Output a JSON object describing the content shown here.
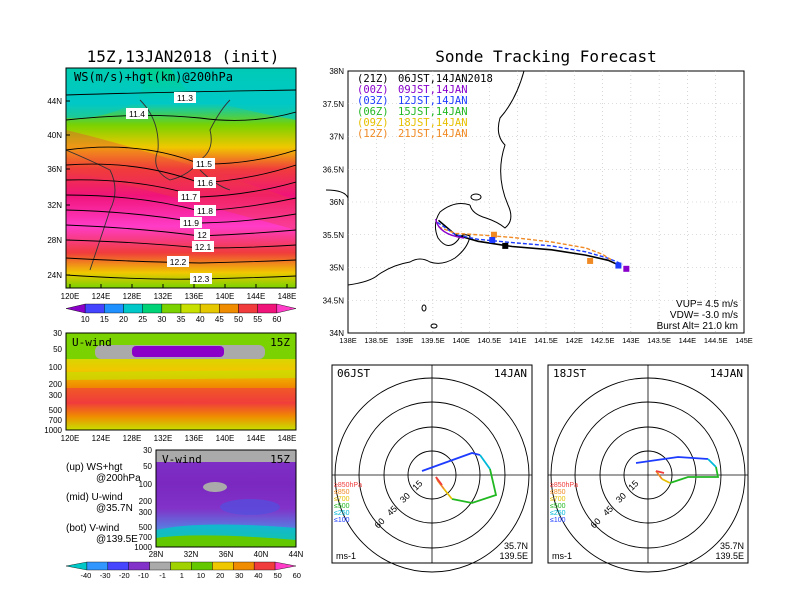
{
  "colors": {
    "accent_purple": "#8800cc",
    "track_blue": "#1e3cff",
    "track_orange": "#f08a24",
    "wind_scale": [
      "#8a00c8",
      "#4444ff",
      "#1e90ff",
      "#00c8c8",
      "#00d278",
      "#7ad200",
      "#c8e000",
      "#e6c800",
      "#f08c00",
      "#f03c3c",
      "#f0147a",
      "#ff3cc8"
    ],
    "vwind_scale": [
      "#00c8c8",
      "#3296ff",
      "#4646ff",
      "#8232c8",
      "#aaaaaa",
      "#a0d200",
      "#64c800",
      "#f0c800",
      "#f08c00",
      "#f03c3c",
      "#ff3cc8"
    ]
  },
  "left": {
    "main_title": "15Z,13JAN2018 (init)",
    "map_label": "WS(m/s)+hgt(km)@200hPa",
    "lat_ticks": [
      "44N",
      "40N",
      "36N",
      "32N",
      "28N",
      "24N"
    ],
    "lon_ticks": [
      "120E",
      "124E",
      "128E",
      "132E",
      "136E",
      "140E",
      "144E",
      "148E"
    ],
    "contours": [
      "11.3",
      "11.4",
      "11.5",
      "11.6",
      "11.7",
      "11.8",
      "11.9",
      "12",
      "12.1",
      "12.2",
      "12.3"
    ],
    "colorbar_labels": [
      "10",
      "15",
      "20",
      "25",
      "30",
      "35",
      "40",
      "45",
      "50",
      "55",
      "60"
    ]
  },
  "uwind": {
    "label": "U-wind",
    "time": "15Z",
    "p_ticks": [
      "30",
      "50",
      "100",
      "200",
      "300",
      "500",
      "700",
      "1000"
    ],
    "lon_ticks": [
      "120E",
      "124E",
      "128E",
      "132E",
      "136E",
      "140E",
      "144E",
      "148E"
    ]
  },
  "vwind": {
    "label": "V-wind",
    "time": "15Z",
    "p_ticks": [
      "30",
      "50",
      "100",
      "200",
      "300",
      "500",
      "700",
      "1000"
    ],
    "lat_ticks": [
      "28N",
      "32N",
      "36N",
      "40N",
      "44N"
    ],
    "colorbar_labels": [
      "-40",
      "-30",
      "-20",
      "-10",
      "-1",
      "1",
      "10",
      "20",
      "30",
      "40",
      "50",
      "60"
    ]
  },
  "legend_notes": [
    {
      "line1": "(up) WS+hgt",
      "line2": "@200hPa"
    },
    {
      "line1": "(mid) U-wind",
      "line2": "@35.7N"
    },
    {
      "line1": "(bot) V-wind",
      "line2": "@139.5E"
    }
  ],
  "track": {
    "title": "Sonde Tracking Forecast",
    "lat_ticks": [
      "38N",
      "37.5N",
      "37N",
      "36.5N",
      "36N",
      "35.5N",
      "35N",
      "34.5N",
      "34N"
    ],
    "lon_ticks": [
      "138E",
      "138.5E",
      "139E",
      "139.5E",
      "140E",
      "140.5E",
      "141E",
      "141.5E",
      "142E",
      "142.5E",
      "143E",
      "143.5E",
      "144E",
      "144.5E",
      "145E"
    ],
    "legend": [
      {
        "z": "(21Z)",
        "t": "06JST,14JAN2018",
        "color": "#000000"
      },
      {
        "z": "(00Z)",
        "t": "09JST,14JAN",
        "color": "#8800cc"
      },
      {
        "z": "(03Z)",
        "t": "12JST,14JAN",
        "color": "#1e3cff"
      },
      {
        "z": "(06Z)",
        "t": "15JST,14JAN",
        "color": "#22b822"
      },
      {
        "z": "(09Z)",
        "t": "18JST,14JAN",
        "color": "#e6c000"
      },
      {
        "z": "(12Z)",
        "t": "21JST,14JAN",
        "color": "#f08a24"
      }
    ],
    "params": [
      "VUP= 4.5 m/s",
      "VDW= -3.0 m/s",
      "Burst Alt= 21.0 km"
    ]
  },
  "hodo_left": {
    "time": "06JST",
    "date": "14JAN",
    "rings": [
      "15",
      "30",
      "45",
      "60"
    ],
    "levels": [
      {
        "t": "≥850hPa",
        "c": "#f03c3c"
      },
      {
        "t": "≤850",
        "c": "#f08a24"
      },
      {
        "t": "≤700",
        "c": "#e6c000"
      },
      {
        "t": "≤500",
        "c": "#22b822"
      },
      {
        "t": "≤250",
        "c": "#00b8d8"
      },
      {
        "t": "≤100",
        "c": "#1e3cff"
      }
    ],
    "units": "ms-1",
    "lat": "35.7N",
    "lon": "139.5E"
  },
  "hodo_right": {
    "time": "18JST",
    "date": "14JAN",
    "rings": [
      "15",
      "30",
      "45",
      "60"
    ],
    "levels": [
      {
        "t": "≥850hPa",
        "c": "#f03c3c"
      },
      {
        "t": "≤850",
        "c": "#f08a24"
      },
      {
        "t": "≤700",
        "c": "#e6c000"
      },
      {
        "t": "≤500",
        "c": "#22b822"
      },
      {
        "t": "≤250",
        "c": "#00b8d8"
      },
      {
        "t": "≤100",
        "c": "#1e3cff"
      }
    ],
    "units": "ms-1",
    "lat": "35.7N",
    "lon": "139.5E"
  },
  "chart_data": [
    {
      "type": "heatmap",
      "title": "15Z,13JAN2018 (init)",
      "subtitle": "WS(m/s)+hgt(km)@200hPa",
      "x_ticks": [
        "120E",
        "124E",
        "128E",
        "132E",
        "136E",
        "140E",
        "144E",
        "148E"
      ],
      "y_ticks": [
        "44N",
        "40N",
        "36N",
        "32N",
        "28N",
        "24N"
      ],
      "contour_levels_km": [
        11.3,
        11.4,
        11.5,
        11.6,
        11.7,
        11.8,
        11.9,
        12,
        12.1,
        12.2,
        12.3
      ],
      "colorbar": [
        10,
        15,
        20,
        25,
        30,
        35,
        40,
        45,
        50,
        55,
        60
      ]
    },
    {
      "type": "line",
      "title": "Sonde Tracking Forecast",
      "xlim": [
        138,
        145
      ],
      "ylim": [
        34,
        38
      ],
      "series": [
        {
          "name": "(21Z) 06JST,14JAN2018",
          "x": [
            139.6,
            139.9,
            140.3,
            140.9,
            141.6,
            142.2,
            142.6,
            142.83
          ],
          "y": [
            35.72,
            35.5,
            35.4,
            35.32,
            35.27,
            35.19,
            35.11,
            35.02
          ]
        },
        {
          "name": "(03Z) 12JST,14JAN",
          "x": [
            139.58,
            139.9,
            140.3,
            140.9,
            141.6,
            142.2,
            142.6,
            142.85
          ],
          "y": [
            35.69,
            35.5,
            35.43,
            35.38,
            35.33,
            35.24,
            35.14,
            35.05
          ]
        },
        {
          "name": "(12Z) 21JST,14JAN",
          "x": [
            139.6,
            139.9,
            140.3,
            140.9,
            141.6,
            142.2,
            142.5,
            142.65
          ],
          "y": [
            35.62,
            35.52,
            35.5,
            35.46,
            35.39,
            35.3,
            35.2,
            35.12
          ]
        }
      ],
      "params": {
        "VUP_m_s": 4.5,
        "VDW_m_s": -3.0,
        "burst_alt_km": 21.0
      }
    }
  ]
}
